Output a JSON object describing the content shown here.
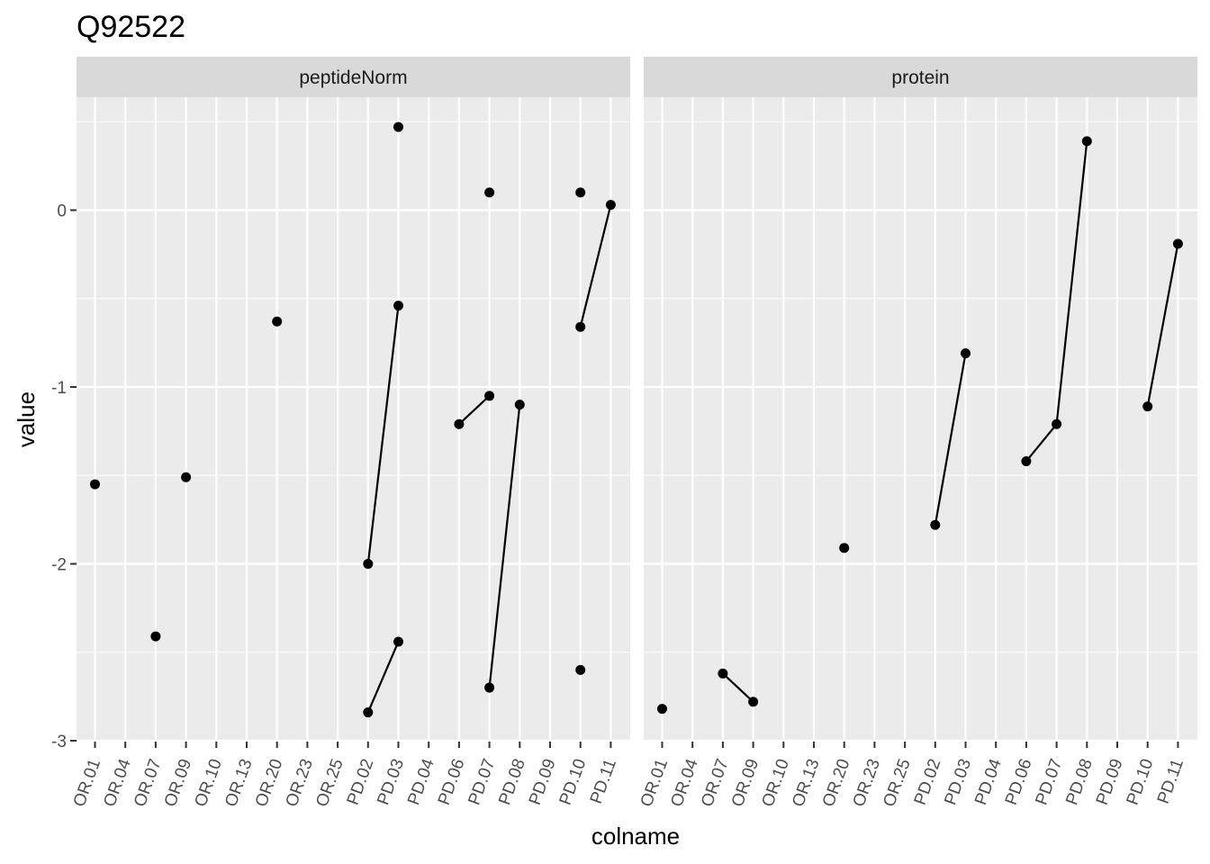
{
  "chart_data": {
    "type": "line",
    "title": "Q92522",
    "xlabel": "colname",
    "ylabel": "value",
    "ylim": [
      -3.0,
      0.62
    ],
    "y_ticks": [
      0,
      -1,
      -2,
      -3
    ],
    "y_tick_labels": [
      "0",
      "-1",
      "-2",
      "-3"
    ],
    "grid": true,
    "categories": [
      "OR.01",
      "OR.04",
      "OR.07",
      "OR.09",
      "OR.10",
      "OR.13",
      "OR.20",
      "OR.23",
      "OR.25",
      "PD.02",
      "PD.03",
      "PD.04",
      "PD.06",
      "PD.07",
      "PD.08",
      "PD.09",
      "PD.10",
      "PD.11"
    ],
    "panels": [
      {
        "label": "peptideNorm",
        "points": [
          {
            "x": "OR.01",
            "y": -1.55
          },
          {
            "x": "OR.07",
            "y": -2.41
          },
          {
            "x": "OR.09",
            "y": -1.51
          },
          {
            "x": "OR.20",
            "y": -0.63
          },
          {
            "x": "PD.02",
            "y": -2.0
          },
          {
            "x": "PD.02",
            "y": -2.84
          },
          {
            "x": "PD.03",
            "y": 0.47
          },
          {
            "x": "PD.03",
            "y": -0.54
          },
          {
            "x": "PD.03",
            "y": -2.44
          },
          {
            "x": "PD.06",
            "y": -1.21
          },
          {
            "x": "PD.07",
            "y": 0.1
          },
          {
            "x": "PD.07",
            "y": -1.05
          },
          {
            "x": "PD.07",
            "y": -2.7
          },
          {
            "x": "PD.08",
            "y": -1.1
          },
          {
            "x": "PD.10",
            "y": 0.1
          },
          {
            "x": "PD.10",
            "y": -0.66
          },
          {
            "x": "PD.10",
            "y": -2.6
          },
          {
            "x": "PD.11",
            "y": 0.03
          }
        ],
        "lines": [
          [
            {
              "x": "PD.02",
              "y": -2.0
            },
            {
              "x": "PD.03",
              "y": -0.54
            }
          ],
          [
            {
              "x": "PD.02",
              "y": -2.84
            },
            {
              "x": "PD.03",
              "y": -2.44
            }
          ],
          [
            {
              "x": "PD.06",
              "y": -1.21
            },
            {
              "x": "PD.07",
              "y": -1.05
            }
          ],
          [
            {
              "x": "PD.07",
              "y": -2.7
            },
            {
              "x": "PD.08",
              "y": -1.1
            }
          ],
          [
            {
              "x": "PD.10",
              "y": -0.66
            },
            {
              "x": "PD.11",
              "y": 0.03
            }
          ]
        ]
      },
      {
        "label": "protein",
        "points": [
          {
            "x": "OR.01",
            "y": -2.82
          },
          {
            "x": "OR.07",
            "y": -2.62
          },
          {
            "x": "OR.09",
            "y": -2.78
          },
          {
            "x": "OR.20",
            "y": -1.91
          },
          {
            "x": "PD.02",
            "y": -1.78
          },
          {
            "x": "PD.03",
            "y": -0.81
          },
          {
            "x": "PD.06",
            "y": -1.42
          },
          {
            "x": "PD.07",
            "y": -1.21
          },
          {
            "x": "PD.08",
            "y": 0.39
          },
          {
            "x": "PD.10",
            "y": -1.11
          },
          {
            "x": "PD.11",
            "y": -0.19
          }
        ],
        "lines": [
          [
            {
              "x": "OR.07",
              "y": -2.62
            },
            {
              "x": "OR.09",
              "y": -2.78
            }
          ],
          [
            {
              "x": "PD.02",
              "y": -1.78
            },
            {
              "x": "PD.03",
              "y": -0.81
            }
          ],
          [
            {
              "x": "PD.06",
              "y": -1.42
            },
            {
              "x": "PD.07",
              "y": -1.21
            },
            {
              "x": "PD.08",
              "y": 0.39
            }
          ],
          [
            {
              "x": "PD.10",
              "y": -1.11
            },
            {
              "x": "PD.11",
              "y": -0.19
            }
          ]
        ]
      }
    ],
    "colors": {
      "panel_background": "#ebebeb",
      "strip_background": "#d9d9d9",
      "grid": "#ffffff",
      "points": "#000000",
      "lines": "#000000"
    }
  }
}
